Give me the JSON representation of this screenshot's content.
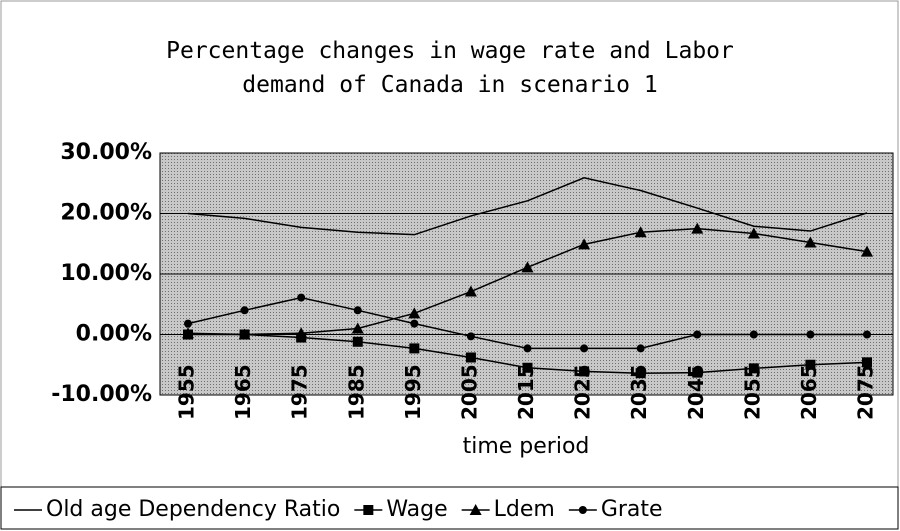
{
  "chart_data": {
    "type": "line",
    "title": "Percentage changes in wage rate and Labor demand of Canada in scenario 1",
    "x_label": "time period",
    "categories": [
      "1955",
      "1965",
      "1975",
      "1985",
      "1995",
      "2005",
      "2015",
      "2025",
      "2035",
      "2045",
      "2055",
      "2065",
      "2075"
    ],
    "series": [
      {
        "name": "Old age Dependency Ratio",
        "color": "#000000",
        "marker": "none",
        "values": [
          20,
          19.2,
          17.7,
          16.9,
          16.5,
          19.6,
          22.1,
          25.9,
          23.8,
          20.9,
          17.9,
          17.1,
          20.1
        ]
      },
      {
        "name": "Wage",
        "color": "#000000",
        "marker": "square",
        "values": [
          0,
          0,
          -0.5,
          -1.2,
          -2.3,
          -3.8,
          -5.5,
          -6.1,
          -6.4,
          -6.3,
          -5.6,
          -5.0,
          -4.6
        ]
      },
      {
        "name": "Ldem",
        "color": "#000000",
        "marker": "triangle",
        "values": [
          0.2,
          0,
          0.2,
          1,
          3.5,
          7.1,
          11.1,
          14.9,
          16.9,
          17.5,
          16.7,
          15.2,
          13.7
        ]
      },
      {
        "name": "Grate",
        "color": "#000000",
        "marker": "circle",
        "values": [
          1.8,
          4,
          6.1,
          4,
          1.8,
          -0.3,
          -2.3,
          -2.3,
          -2.3,
          0,
          0,
          0,
          0
        ]
      }
    ],
    "ylim": [
      -10,
      30
    ],
    "yticks": [
      {
        "value": -10,
        "label": "-10.00%"
      },
      {
        "value": 0,
        "label": "0.00%"
      },
      {
        "value": 10,
        "label": "10.00%"
      },
      {
        "value": 20,
        "label": "20.00%"
      },
      {
        "value": 30,
        "label": "30.00%"
      }
    ],
    "grid": true,
    "legend": "bottom",
    "plot_background": "#b4b4b4"
  }
}
